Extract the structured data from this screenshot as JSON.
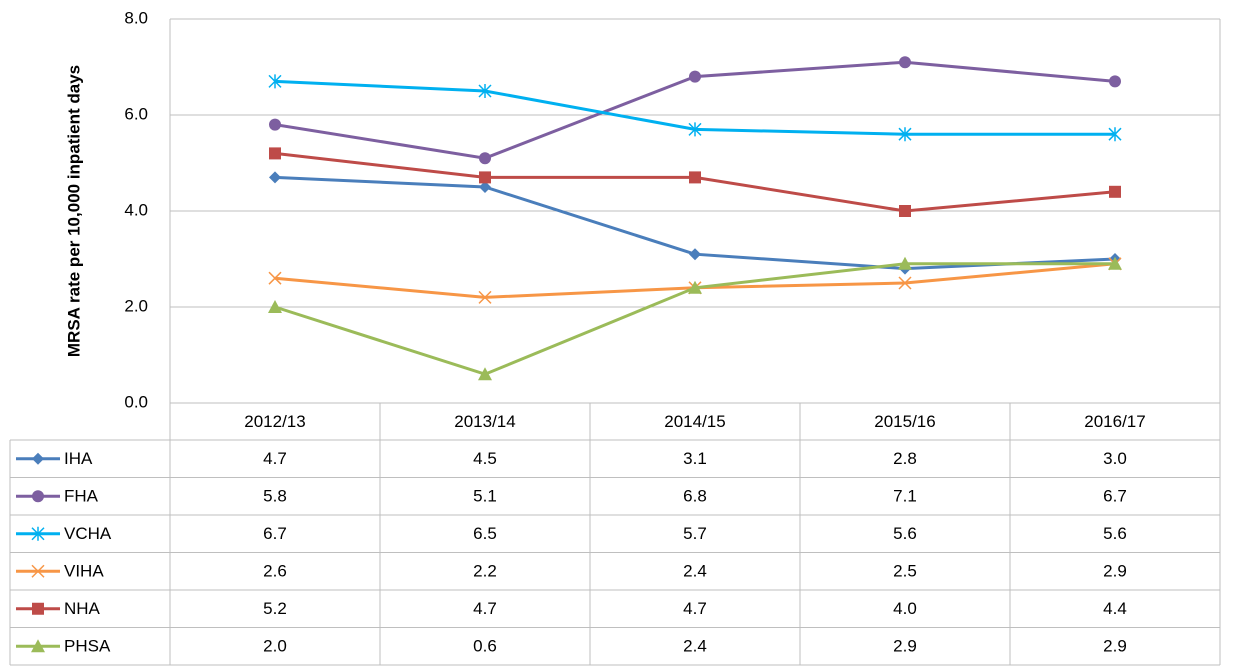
{
  "chart_data": {
    "type": "line",
    "y_label": "MRSA rate per 10,000 inpatient days",
    "categories": [
      "2012/13",
      "2013/14",
      "2014/15",
      "2015/16",
      "2016/17"
    ],
    "ylim": [
      0,
      8
    ],
    "yticks": [
      {
        "value": 0,
        "label": "0.0"
      },
      {
        "value": 2,
        "label": "2.0"
      },
      {
        "value": 4,
        "label": "4.0"
      },
      {
        "value": 6,
        "label": "6.0"
      },
      {
        "value": 8,
        "label": "8.0"
      }
    ],
    "grid": true,
    "series": [
      {
        "name": "IHA",
        "color": "#4a7ebb",
        "marker": "diamond",
        "values": [
          4.7,
          4.5,
          3.1,
          2.8,
          3.0
        ],
        "value_labels": [
          "4.7",
          "4.5",
          "3.1",
          "2.8",
          "3.0"
        ]
      },
      {
        "name": "FHA",
        "color": "#7d5fa0",
        "marker": "circle",
        "values": [
          5.8,
          5.1,
          6.8,
          7.1,
          6.7
        ],
        "value_labels": [
          "5.8",
          "5.1",
          "6.8",
          "7.1",
          "6.7"
        ]
      },
      {
        "name": "VCHA",
        "color": "#00b0f0",
        "marker": "star",
        "values": [
          6.7,
          6.5,
          5.7,
          5.6,
          5.6
        ],
        "value_labels": [
          "6.7",
          "6.5",
          "5.7",
          "5.6",
          "5.6"
        ]
      },
      {
        "name": "VIHA",
        "color": "#f79646",
        "marker": "x",
        "values": [
          2.6,
          2.2,
          2.4,
          2.5,
          2.9
        ],
        "value_labels": [
          "2.6",
          "2.2",
          "2.4",
          "2.5",
          "2.9"
        ]
      },
      {
        "name": "NHA",
        "color": "#be4b48",
        "marker": "square",
        "values": [
          5.2,
          4.7,
          4.7,
          4.0,
          4.4
        ],
        "value_labels": [
          "5.2",
          "4.7",
          "4.7",
          "4.0",
          "4.4"
        ]
      },
      {
        "name": "PHSA",
        "color": "#9bbb59",
        "marker": "triangle",
        "values": [
          2.0,
          0.6,
          2.4,
          2.9,
          2.9
        ],
        "value_labels": [
          "2.0",
          "0.6",
          "2.4",
          "2.9",
          "2.9"
        ]
      }
    ]
  }
}
